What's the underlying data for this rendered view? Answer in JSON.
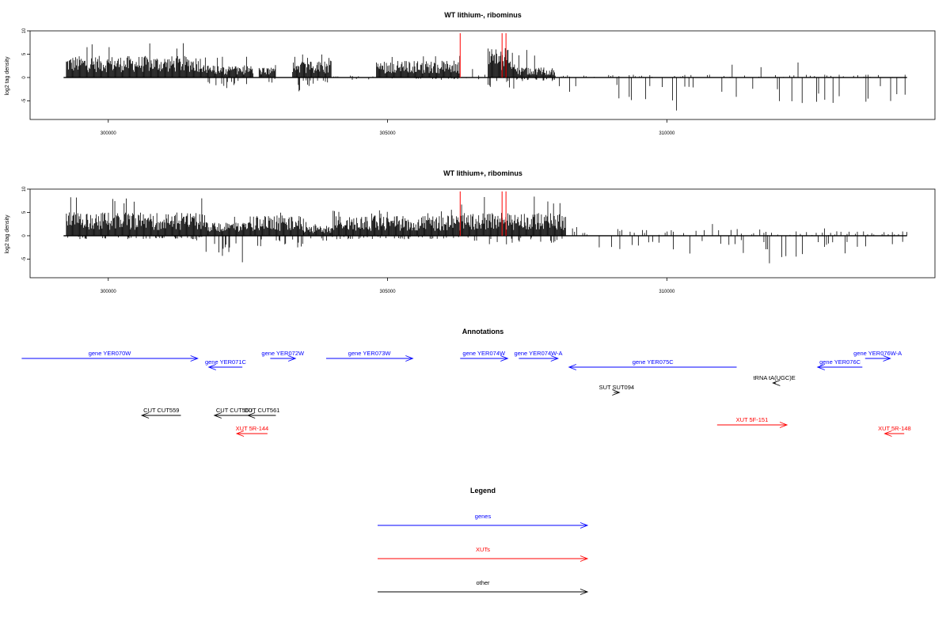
{
  "chart_data": [
    {
      "type": "bar",
      "title": "WT lithium-, ribominus",
      "ylabel": "log2 tag density",
      "ylim": [
        -9,
        10
      ],
      "xlim": [
        298600,
        314800
      ],
      "data_x": [
        299200,
        314300
      ],
      "x_ticks": [
        300000,
        305000,
        310000
      ],
      "x_tick_labels": [
        "300000",
        "305000",
        "310000"
      ],
      "y_ticks": [
        10,
        5,
        0,
        -5
      ],
      "y_tick_labels": [
        "10",
        "5",
        "0",
        "-5"
      ],
      "bar_color": "#000000",
      "highlight_color": "#ff0000",
      "highlights": [
        {
          "x": 306300,
          "value": 9.5
        },
        {
          "x": 307050,
          "value": 9.5
        },
        {
          "x": 307120,
          "value": 9.5
        }
      ],
      "segments": [
        {
          "start": 299250,
          "end": 301750,
          "pos_mean": 3.2,
          "pos_max": 8,
          "neg": 0
        },
        {
          "start": 301750,
          "end": 302600,
          "pos_mean": 1.8,
          "pos_max": 4.5,
          "neg": -2.5
        },
        {
          "start": 302700,
          "end": 303000,
          "pos_mean": 1.5,
          "pos_max": 3,
          "neg": -1.5
        },
        {
          "start": 303300,
          "end": 304000,
          "pos_mean": 2.5,
          "pos_max": 5.5,
          "neg": -3
        },
        {
          "start": 304000,
          "end": 304800,
          "pos_mean": 0.2,
          "pos_max": 1,
          "neg": -1
        },
        {
          "start": 304800,
          "end": 306300,
          "pos_mean": 2.5,
          "pos_max": 5,
          "neg": -0.5
        },
        {
          "start": 306300,
          "end": 306800,
          "pos_mean": 1,
          "pos_max": 2.5,
          "neg": -0.5
        },
        {
          "start": 306800,
          "end": 307300,
          "pos_mean": 4.5,
          "pos_max": 7.5,
          "neg": -3.5
        },
        {
          "start": 307300,
          "end": 308000,
          "pos_mean": 1.5,
          "pos_max": 6,
          "neg": -1
        },
        {
          "start": 308000,
          "end": 314300,
          "pos_mean": 0.3,
          "pos_max": 3.5,
          "neg": -7.5
        }
      ]
    },
    {
      "type": "bar",
      "title": "WT lithium+, ribominus",
      "ylabel": "log2 tag density",
      "ylim": [
        -9,
        10
      ],
      "xlim": [
        298600,
        314800
      ],
      "data_x": [
        299200,
        314300
      ],
      "x_ticks": [
        300000,
        305000,
        310000
      ],
      "x_tick_labels": [
        "300000",
        "305000",
        "310000"
      ],
      "y_ticks": [
        10,
        5,
        0,
        -5
      ],
      "y_tick_labels": [
        "10",
        "5",
        "0",
        "-5"
      ],
      "bar_color": "#000000",
      "highlight_color": "#ff0000",
      "highlights": [
        {
          "x": 306300,
          "value": 9.5
        },
        {
          "x": 307050,
          "value": 9.5
        },
        {
          "x": 307120,
          "value": 9.5
        }
      ],
      "segments": [
        {
          "start": 299250,
          "end": 301750,
          "pos_mean": 3.5,
          "pos_max": 8.5,
          "neg": -1
        },
        {
          "start": 301750,
          "end": 302600,
          "pos_mean": 2,
          "pos_max": 4.5,
          "neg": -6
        },
        {
          "start": 302600,
          "end": 303500,
          "pos_mean": 3,
          "pos_max": 6,
          "neg": -3.5
        },
        {
          "start": 303500,
          "end": 304000,
          "pos_mean": 1.5,
          "pos_max": 3,
          "neg": -1.5
        },
        {
          "start": 304000,
          "end": 306300,
          "pos_mean": 3,
          "pos_max": 6,
          "neg": -1
        },
        {
          "start": 306300,
          "end": 308200,
          "pos_mean": 3.5,
          "pos_max": 8.5,
          "neg": -2
        },
        {
          "start": 308200,
          "end": 311800,
          "pos_mean": 0.8,
          "pos_max": 3,
          "neg": -4
        },
        {
          "start": 311800,
          "end": 312600,
          "pos_mean": 0.5,
          "pos_max": 2,
          "neg": -8.5
        },
        {
          "start": 312600,
          "end": 314300,
          "pos_mean": 0.5,
          "pos_max": 2.5,
          "neg": -4
        }
      ]
    }
  ],
  "annotations": {
    "title": "Annotations",
    "items": [
      {
        "label": "gene YER070W",
        "type": "gene",
        "start": 298450,
        "end": 301600,
        "strand": "+",
        "row": 0
      },
      {
        "label": "gene YER071C",
        "type": "gene",
        "start": 301800,
        "end": 302400,
        "strand": "-",
        "row": 1
      },
      {
        "label": "gene YER072W",
        "type": "gene",
        "start": 302900,
        "end": 303350,
        "strand": "+",
        "row": 0
      },
      {
        "label": "gene YER073W",
        "type": "gene",
        "start": 303900,
        "end": 305450,
        "strand": "+",
        "row": 0
      },
      {
        "label": "gene YER074W",
        "type": "gene",
        "start": 306300,
        "end": 307150,
        "strand": "+",
        "row": 0
      },
      {
        "label": "gene YER074W-A",
        "type": "gene",
        "start": 307350,
        "end": 308050,
        "strand": "+",
        "row": 0
      },
      {
        "label": "gene YER075C",
        "type": "gene",
        "start": 308250,
        "end": 311250,
        "strand": "-",
        "row": 1
      },
      {
        "label": "gene YER076W-A",
        "type": "gene",
        "start": 313550,
        "end": 314000,
        "strand": "+",
        "row": 0
      },
      {
        "label": "gene YER076C",
        "type": "gene",
        "start": 312700,
        "end": 313500,
        "strand": "-",
        "row": 1
      },
      {
        "label": "tRNA tA(UGC)E",
        "type": "other",
        "start": 311900,
        "end": 311950,
        "strand": "-",
        "row": 2
      },
      {
        "label": "SUT SUT094",
        "type": "other",
        "start": 309050,
        "end": 309150,
        "strand": "+",
        "row": 3
      },
      {
        "label": "CUT CUT559",
        "type": "other",
        "start": 300600,
        "end": 301300,
        "strand": "-",
        "row": 4
      },
      {
        "label": "CUT CUT560",
        "type": "other",
        "start": 301900,
        "end": 302600,
        "strand": "-",
        "row": 4
      },
      {
        "label": "CUT CUT561",
        "type": "other",
        "start": 302500,
        "end": 303000,
        "strand": "-",
        "row": 4
      },
      {
        "label": "XUT 5F-151",
        "type": "xut",
        "start": 310900,
        "end": 312150,
        "strand": "+",
        "row": 5
      },
      {
        "label": "XUT 5R-144",
        "type": "xut",
        "start": 302300,
        "end": 302850,
        "strand": "-",
        "row": 6
      },
      {
        "label": "XUT 5R-148",
        "type": "xut",
        "start": 313900,
        "end": 314250,
        "strand": "-",
        "row": 6
      }
    ]
  },
  "legend": {
    "title": "Legend",
    "entries": [
      {
        "label": "genes",
        "color": "#0000ff"
      },
      {
        "label": "XUTs",
        "color": "#ff0000"
      },
      {
        "label": "other",
        "color": "#000000"
      }
    ]
  },
  "colors": {
    "gene": "#0000ff",
    "xut": "#ff0000",
    "other": "#000000"
  }
}
